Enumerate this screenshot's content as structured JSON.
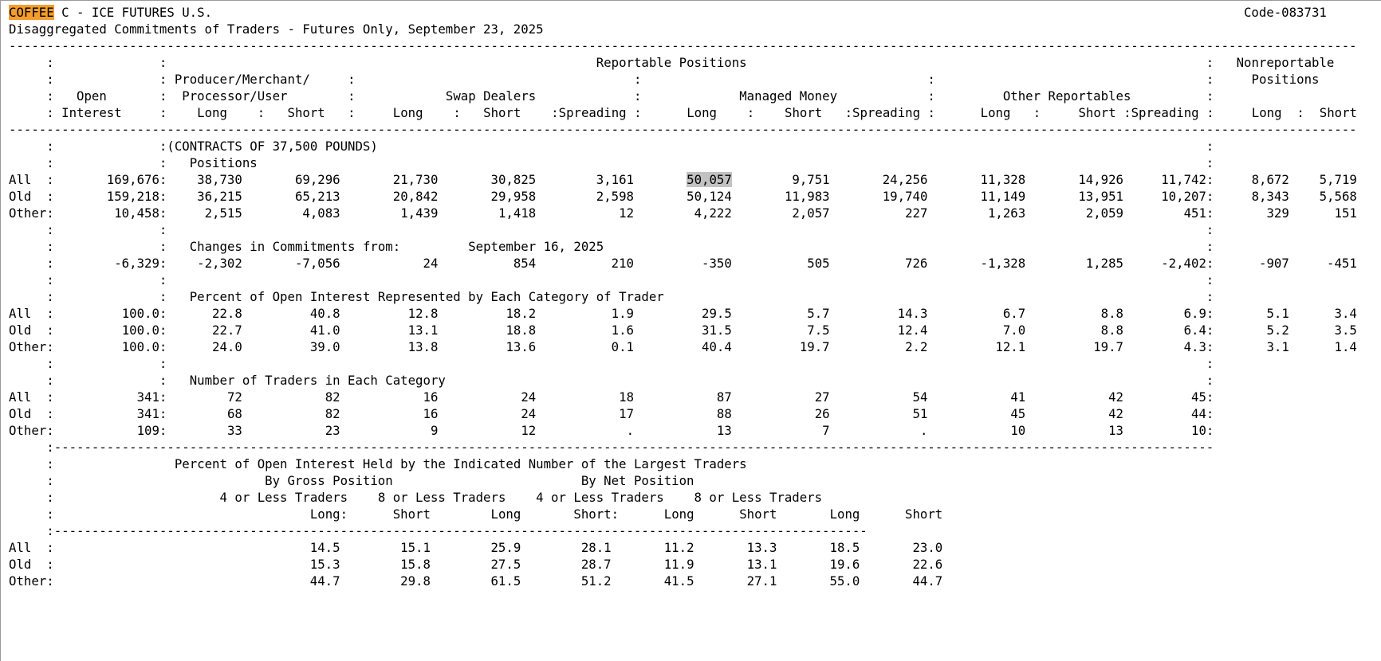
{
  "report": {
    "commodity": "COFFEE",
    "title_rest": " C - ICE FUTURES U.S.",
    "code": "Code-083731",
    "subtitle": "Disaggregated Commitments of Traders - Futures Only, September 23, 2025",
    "contracts_note": "(CONTRACTS OF 37,500 POUNDS)",
    "highlight_colors": {
      "find_bg": "#f49d2e",
      "selected_cell_bg": "#c2c2c2"
    },
    "selected_cell": {
      "section": "Positions",
      "row": "All",
      "column": "Managed Money Long",
      "value": "50,057"
    }
  },
  "header": {
    "reportable": "Reportable Positions",
    "nonreportable_1": "Nonreportable",
    "nonreportable_2": "Positions",
    "open_1": "Open",
    "open_2": "Interest",
    "pm_1": "Producer/Merchant/",
    "pm_2": "Processor/User",
    "swap": "Swap Dealers",
    "mm": "Managed Money",
    "other": "Other Reportables",
    "col_long": "Long",
    "col_short": "Short",
    "col_spreading": "Spreading"
  },
  "positions": {
    "title": "Positions",
    "rows": [
      {
        "label": "All",
        "oi": "169,676",
        "v": [
          "38,730",
          "69,296",
          "21,730",
          "30,825",
          "3,161",
          "50,057",
          "9,751",
          "24,256",
          "11,328",
          "14,926",
          "11,742"
        ],
        "nr": [
          "8,672",
          "5,719"
        ]
      },
      {
        "label": "Old",
        "oi": "159,218",
        "v": [
          "36,215",
          "65,213",
          "20,842",
          "29,958",
          "2,598",
          "50,124",
          "11,983",
          "19,740",
          "11,149",
          "13,951",
          "10,207"
        ],
        "nr": [
          "8,343",
          "5,568"
        ]
      },
      {
        "label": "Other",
        "oi": "10,458",
        "v": [
          "2,515",
          "4,083",
          "1,439",
          "1,418",
          "12",
          "4,222",
          "2,057",
          "227",
          "1,263",
          "2,059",
          "451"
        ],
        "nr": [
          "329",
          "151"
        ]
      }
    ]
  },
  "changes": {
    "title": "Changes in Commitments from:",
    "date": "September 16, 2025",
    "row": {
      "label": "",
      "oi": "-6,329",
      "v": [
        "-2,302",
        "-7,056",
        "24",
        "854",
        "210",
        "-350",
        "505",
        "726",
        "-1,328",
        "1,285",
        "-2,402"
      ],
      "nr": [
        "-907",
        "-451"
      ]
    }
  },
  "percent": {
    "title": "Percent of Open Interest Represented by Each Category of Trader",
    "rows": [
      {
        "label": "All",
        "oi": "100.0",
        "v": [
          "22.8",
          "40.8",
          "12.8",
          "18.2",
          "1.9",
          "29.5",
          "5.7",
          "14.3",
          "6.7",
          "8.8",
          "6.9"
        ],
        "nr": [
          "5.1",
          "3.4"
        ]
      },
      {
        "label": "Old",
        "oi": "100.0",
        "v": [
          "22.7",
          "41.0",
          "13.1",
          "18.8",
          "1.6",
          "31.5",
          "7.5",
          "12.4",
          "7.0",
          "8.8",
          "6.4"
        ],
        "nr": [
          "5.2",
          "3.5"
        ]
      },
      {
        "label": "Other",
        "oi": "100.0",
        "v": [
          "24.0",
          "39.0",
          "13.8",
          "13.6",
          "0.1",
          "40.4",
          "19.7",
          "2.2",
          "12.1",
          "19.7",
          "4.3"
        ],
        "nr": [
          "3.1",
          "1.4"
        ]
      }
    ]
  },
  "traders": {
    "title": "Number of Traders in Each Category",
    "rows": [
      {
        "label": "All",
        "oi": "341",
        "v": [
          "72",
          "82",
          "16",
          "24",
          "18",
          "87",
          "27",
          "54",
          "41",
          "42",
          "45"
        ]
      },
      {
        "label": "Old",
        "oi": "341",
        "v": [
          "68",
          "82",
          "16",
          "24",
          "17",
          "88",
          "26",
          "51",
          "45",
          "42",
          "44"
        ]
      },
      {
        "label": "Other",
        "oi": "109",
        "v": [
          "33",
          "23",
          "9",
          "12",
          ".",
          "13",
          "7",
          ".",
          "10",
          "13",
          "10"
        ]
      }
    ]
  },
  "largest": {
    "title": "Percent of Open Interest Held by the Indicated Number of the Largest Traders",
    "gross": "By Gross Position",
    "net": "By Net Position",
    "groups": [
      "4 or Less Traders",
      "8 or Less Traders",
      "4 or Less Traders",
      "8 or Less Traders"
    ],
    "cols": [
      "Long:",
      "Short",
      "Long",
      "Short:",
      "Long",
      "Short",
      "Long",
      "Short"
    ],
    "rows": [
      {
        "label": "All",
        "v": [
          "14.5",
          "15.1",
          "25.9",
          "28.1",
          "11.2",
          "13.3",
          "18.5",
          "23.0"
        ]
      },
      {
        "label": "Old",
        "v": [
          "15.3",
          "15.8",
          "27.5",
          "28.7",
          "11.9",
          "13.1",
          "19.6",
          "22.6"
        ]
      },
      {
        "label": "Other",
        "v": [
          "44.7",
          "29.8",
          "61.5",
          "51.2",
          "41.5",
          "27.1",
          "55.0",
          "44.7"
        ]
      }
    ]
  }
}
